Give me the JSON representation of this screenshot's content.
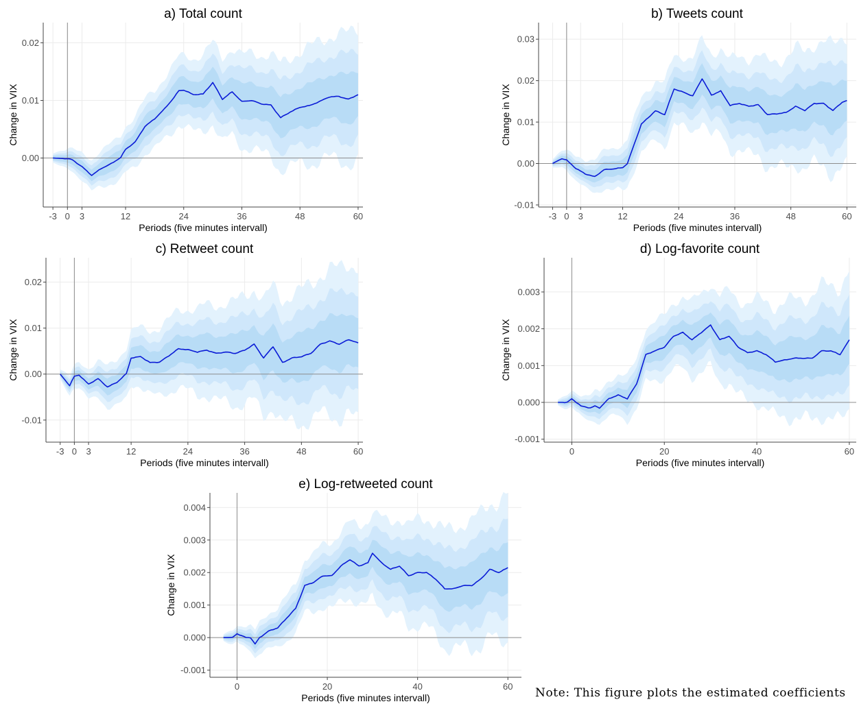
{
  "colors": {
    "band_outer": "#e3f2fd",
    "band_mid": "#cfe7fb",
    "band_inner": "#b8dcf6",
    "line": "#0a1bd6",
    "axis": "#444444",
    "zero_line": "#8c8c8c",
    "grid": "#ebebeb"
  },
  "note": "Note: This figure plots the estimated coefficients",
  "chart_data": [
    {
      "type": "line",
      "title": "a) Total count",
      "xlabel": "Periods (five minutes intervall)",
      "ylabel": "Change in VIX",
      "xlim": [
        -5,
        61
      ],
      "ylim": [
        -0.0085,
        0.0235
      ],
      "xticks": [
        -3,
        0,
        3,
        12,
        24,
        36,
        48,
        60
      ],
      "yticks": [
        0.0,
        0.01,
        0.02
      ],
      "ytick_labels": [
        "0.00",
        "0.01",
        "0.02"
      ],
      "grid": true,
      "vline_at": 0,
      "series": [
        {
          "knots_x": [
            -3,
            0,
            1,
            3,
            5,
            7,
            9,
            11,
            12,
            14,
            16,
            18,
            20,
            22,
            23,
            24,
            26,
            28,
            30,
            32,
            34,
            36,
            38,
            40,
            42,
            44,
            46,
            48,
            50,
            52,
            54,
            56,
            58,
            60
          ],
          "knots_y": [
            0.0,
            -0.0001,
            -0.0003,
            -0.0015,
            -0.003,
            -0.0018,
            -0.001,
            0.0001,
            0.0015,
            0.0028,
            0.0055,
            0.0068,
            0.0085,
            0.0105,
            0.0117,
            0.0118,
            0.011,
            0.0111,
            0.0131,
            0.0102,
            0.0115,
            0.0098,
            0.01,
            0.0094,
            0.0092,
            0.007,
            0.008,
            0.0088,
            0.0091,
            0.0098,
            0.0106,
            0.0107,
            0.0102,
            0.011
          ],
          "bands": [
            {
              "level": "outer",
              "half_width_start": 0.0009,
              "half_width_end": 0.0115
            },
            {
              "level": "mid",
              "half_width_start": 0.0006,
              "half_width_end": 0.0078
            },
            {
              "level": "inner",
              "half_width_start": 0.0004,
              "half_width_end": 0.0042
            }
          ]
        }
      ]
    },
    {
      "type": "line",
      "title": "b) Tweets count",
      "xlabel": "Periods (five minutes intervall)",
      "ylabel": "Change in VIX",
      "xlim": [
        -6,
        62
      ],
      "ylim": [
        -0.0105,
        0.034
      ],
      "xticks": [
        -3,
        0,
        3,
        12,
        24,
        36,
        48,
        60
      ],
      "yticks": [
        -0.01,
        0.0,
        0.01,
        0.02,
        0.03
      ],
      "ytick_labels": [
        "-0.01",
        "0.00",
        "0.01",
        "0.02",
        "0.03"
      ],
      "grid": true,
      "vline_at": 0,
      "series": [
        {
          "knots_x": [
            -3,
            -1,
            0,
            2,
            4,
            6,
            8,
            10,
            12,
            13,
            16,
            19,
            21,
            23,
            25,
            27,
            29,
            31,
            33,
            35,
            37,
            39,
            41,
            43,
            45,
            47,
            49,
            51,
            53,
            55,
            57,
            59,
            60
          ],
          "knots_y": [
            0.0,
            0.0012,
            0.0008,
            -0.0012,
            -0.0025,
            -0.0032,
            -0.0015,
            -0.0013,
            -0.001,
            0.0,
            0.0095,
            0.0127,
            0.0118,
            0.018,
            0.0172,
            0.0163,
            0.0205,
            0.0165,
            0.0175,
            0.014,
            0.0145,
            0.0138,
            0.0142,
            0.0118,
            0.012,
            0.0123,
            0.0138,
            0.0128,
            0.0145,
            0.0145,
            0.0128,
            0.0148,
            0.0152
          ],
          "bands": [
            {
              "level": "outer",
              "half_width_start": 0.0012,
              "half_width_end": 0.016
            },
            {
              "level": "mid",
              "half_width_start": 0.0008,
              "half_width_end": 0.0105
            },
            {
              "level": "inner",
              "half_width_start": 0.0005,
              "half_width_end": 0.0057
            }
          ]
        }
      ]
    },
    {
      "type": "line",
      "title": "c) Retweet count",
      "xlabel": "Periods (five minutes intervall)",
      "ylabel": "Change in VIX",
      "xlim": [
        -6,
        61
      ],
      "ylim": [
        -0.0148,
        0.0253
      ],
      "xticks": [
        -3,
        0,
        3,
        12,
        24,
        36,
        48,
        60
      ],
      "yticks": [
        -0.01,
        0.0,
        0.01,
        0.02
      ],
      "ytick_labels": [
        "-0.01",
        "0.00",
        "0.01",
        "0.02"
      ],
      "grid": true,
      "vline_at": 0,
      "series": [
        {
          "knots_x": [
            -3,
            -1,
            0,
            1,
            3,
            5,
            7,
            9,
            11,
            12,
            14,
            16,
            18,
            20,
            22,
            24,
            26,
            28,
            30,
            32,
            34,
            36,
            38,
            40,
            42,
            44,
            46,
            48,
            50,
            52,
            54,
            56,
            58,
            60
          ],
          "knots_y": [
            0.0,
            -0.0025,
            -0.0005,
            -0.0002,
            -0.0022,
            -0.001,
            -0.0028,
            -0.0018,
            0.0001,
            0.0035,
            0.0038,
            0.0025,
            0.0026,
            0.004,
            0.0055,
            0.0053,
            0.0048,
            0.0052,
            0.0045,
            0.0048,
            0.0045,
            0.0052,
            0.0065,
            0.0035,
            0.006,
            0.0025,
            0.0035,
            0.0038,
            0.0045,
            0.0065,
            0.0072,
            0.0065,
            0.0075,
            0.0068
          ],
          "bands": [
            {
              "level": "outer",
              "half_width_start": 0.0012,
              "half_width_end": 0.017
            },
            {
              "level": "mid",
              "half_width_start": 0.0008,
              "half_width_end": 0.0113
            },
            {
              "level": "inner",
              "half_width_start": 0.0005,
              "half_width_end": 0.006
            }
          ]
        }
      ]
    },
    {
      "type": "line",
      "title": "d) Log-favorite count",
      "xlabel": "Periods (five minutes intervall)",
      "ylabel": "Change in VIX",
      "xlim": [
        -6,
        61.5
      ],
      "ylim": [
        -0.00108,
        0.00393
      ],
      "xticks": [
        0,
        20,
        40,
        60
      ],
      "yticks": [
        -0.001,
        0.0,
        0.001,
        0.002,
        0.003
      ],
      "ytick_labels": [
        "-0.001",
        "0.000",
        "0.001",
        "0.002",
        "0.003"
      ],
      "grid": true,
      "vline_at": 0,
      "series": [
        {
          "knots_x": [
            -3,
            -1,
            0,
            2,
            4,
            5,
            6,
            8,
            10,
            12,
            14,
            16,
            18,
            20,
            22,
            24,
            26,
            28,
            30,
            32,
            34,
            36,
            38,
            40,
            42,
            44,
            46,
            48,
            50,
            52,
            54,
            56,
            58,
            60
          ],
          "knots_y": [
            0.0,
            0.0,
            0.0001,
            -0.0001,
            -0.00015,
            -0.0001,
            -0.00015,
            0.0001,
            0.0002,
            0.0001,
            0.0005,
            0.0013,
            0.0014,
            0.0015,
            0.0018,
            0.0019,
            0.0017,
            0.0019,
            0.0021,
            0.0017,
            0.0018,
            0.0015,
            0.00135,
            0.0014,
            0.0013,
            0.0011,
            0.00115,
            0.0012,
            0.0012,
            0.0012,
            0.0014,
            0.0014,
            0.0013,
            0.0017
          ],
          "bands": [
            {
              "level": "outer",
              "half_width_start": 8e-05,
              "half_width_end": 0.0019
            },
            {
              "level": "mid",
              "half_width_start": 5e-05,
              "half_width_end": 0.00125
            },
            {
              "level": "inner",
              "half_width_start": 3e-05,
              "half_width_end": 0.00066
            }
          ]
        }
      ]
    },
    {
      "type": "line",
      "title": "e) Log-retweeted count",
      "xlabel": "Periods (five minutes intervall)",
      "ylabel": "Change in VIX",
      "xlim": [
        -6,
        63
      ],
      "ylim": [
        -0.00122,
        0.00445
      ],
      "xticks": [
        0,
        20,
        40,
        60
      ],
      "yticks": [
        -0.001,
        0.0,
        0.001,
        0.002,
        0.003,
        0.004
      ],
      "ytick_labels": [
        "-0.001",
        "0.000",
        "0.001",
        "0.002",
        "0.003",
        "0.004"
      ],
      "grid": true,
      "vline_at": 0,
      "series": [
        {
          "knots_x": [
            -3,
            -1,
            0,
            2,
            3,
            4,
            5,
            7,
            9,
            11,
            13,
            15,
            17,
            19,
            21,
            23,
            25,
            27,
            29,
            30,
            32,
            34,
            36,
            38,
            40,
            42,
            44,
            46,
            48,
            50,
            52,
            54,
            56,
            58,
            60
          ],
          "knots_y": [
            0.0,
            0.0,
            0.00012,
            0.0,
            0.0,
            -0.0002,
            0.0,
            0.0002,
            0.0003,
            0.0006,
            0.0009,
            0.0016,
            0.0017,
            0.0019,
            0.0019,
            0.0022,
            0.0024,
            0.0022,
            0.0023,
            0.0026,
            0.0023,
            0.0021,
            0.0022,
            0.0019,
            0.002,
            0.002,
            0.0018,
            0.0015,
            0.0015,
            0.0016,
            0.0016,
            0.0018,
            0.0021,
            0.002,
            0.00215
          ],
          "bands": [
            {
              "level": "outer",
              "half_width_start": 0.0001,
              "half_width_end": 0.0022
            },
            {
              "level": "mid",
              "half_width_start": 7e-05,
              "half_width_end": 0.00145
            },
            {
              "level": "inner",
              "half_width_start": 4e-05,
              "half_width_end": 0.00075
            }
          ]
        }
      ]
    }
  ]
}
